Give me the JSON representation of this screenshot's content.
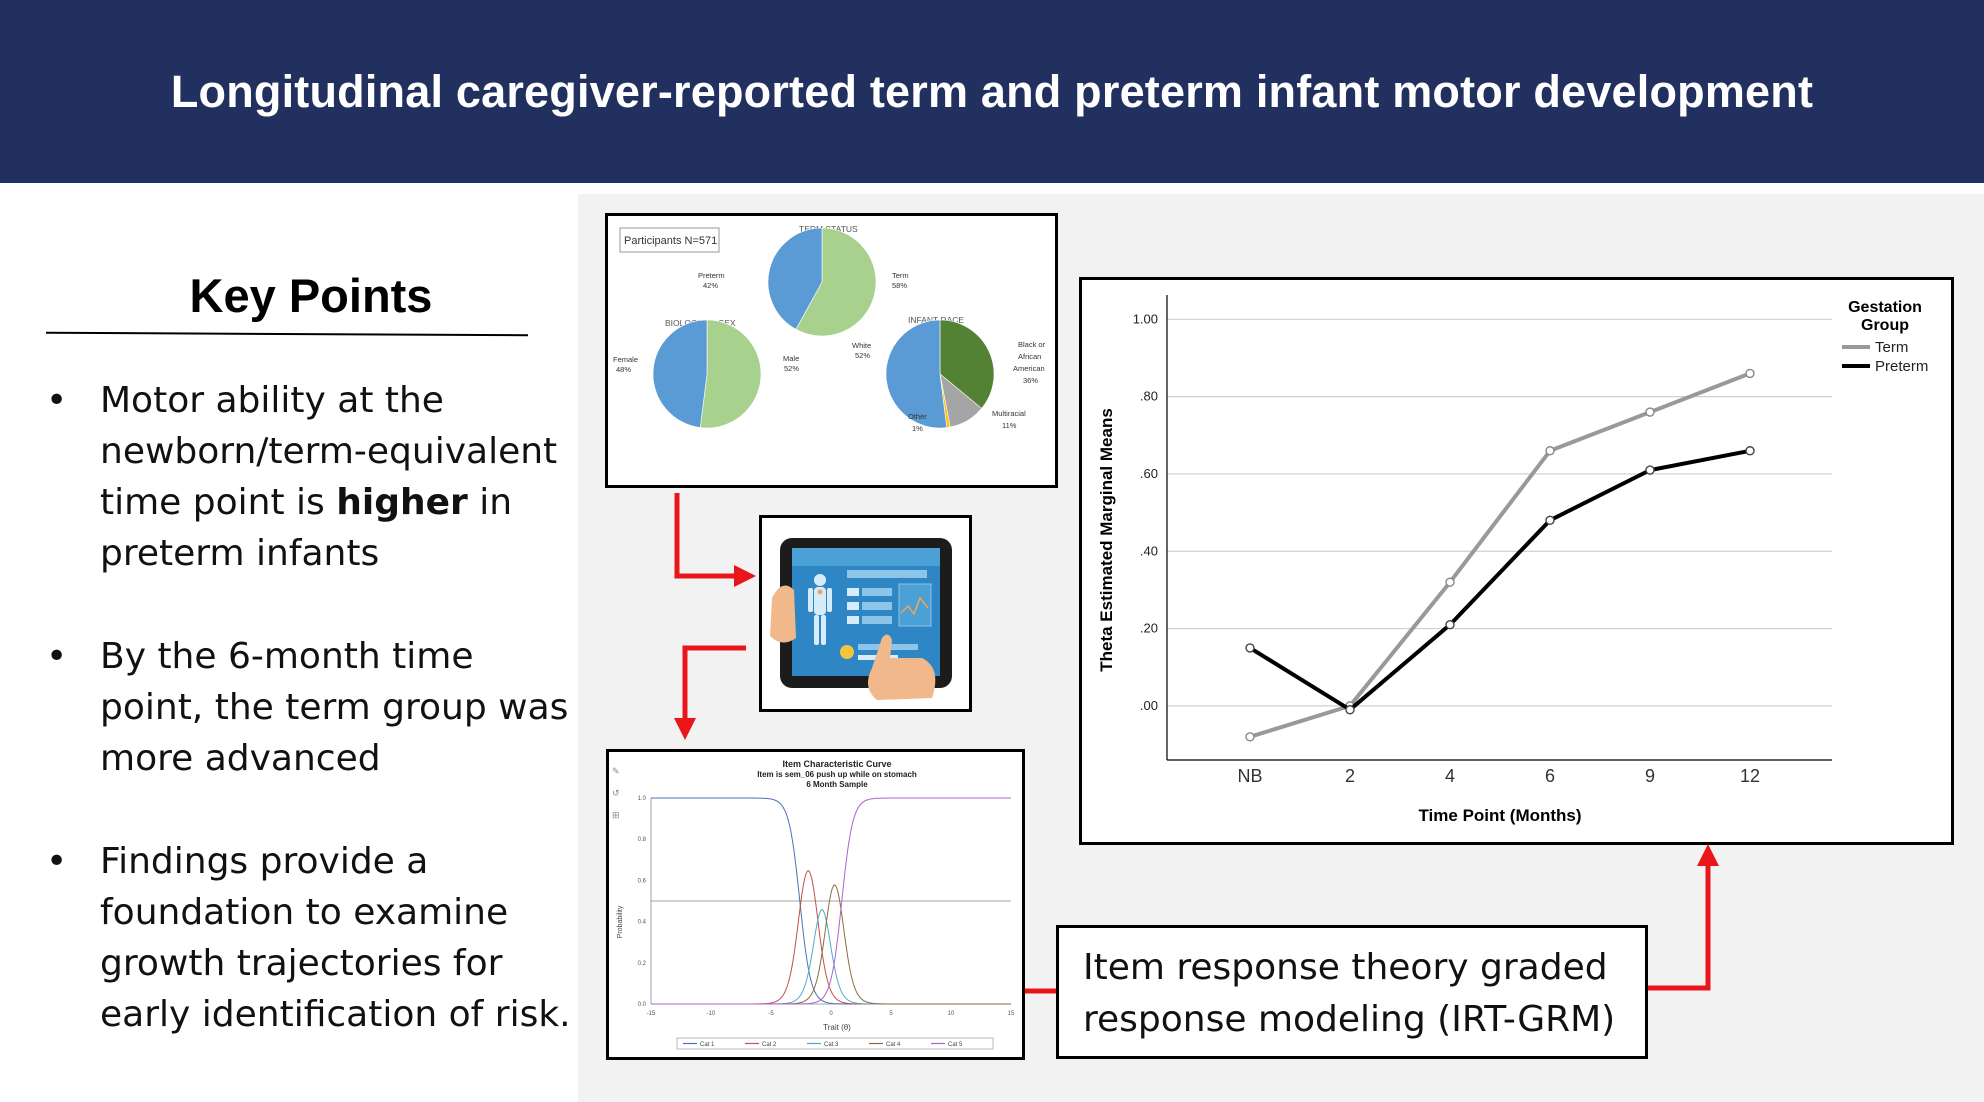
{
  "header": {
    "title": "Longitudinal caregiver-reported term and preterm infant motor development"
  },
  "key_points": {
    "title": "Key Points",
    "bullet_symbol": "•",
    "items": [
      {
        "line1": "Motor ability at the",
        "line2": "newborn/term-equivalent",
        "line3a": "time point is ",
        "bold": "higher",
        "line3b": " in",
        "line4": "preterm infants"
      },
      {
        "line1": "By the 6-month time",
        "line2": "point, the term group was",
        "line3": "more advanced"
      },
      {
        "line1": "Findings provide a",
        "line2": "foundation to examine",
        "line3": "growth trajectories for",
        "line4": "early identification of risk."
      }
    ]
  },
  "demographics": {
    "participants": "Participants N=571",
    "term_status": {
      "title": "TERM STATUS",
      "preterm_label": "Preterm",
      "preterm_pct": "42%",
      "preterm_value": 42,
      "term_label": "Term",
      "term_pct": "58%",
      "term_value": 58
    },
    "sex": {
      "title": "BIOLOGICAL SEX",
      "female_label": "Female",
      "female_pct": "48%",
      "female_value": 48,
      "male_label": "Male",
      "male_pct": "52%",
      "male_value": 52
    },
    "race": {
      "title": "INFANT RACE",
      "white_label": "White",
      "white_pct": "52%",
      "white_value": 52,
      "black_label1": "Black or",
      "black_label2": "African",
      "black_label3": "American",
      "black_pct": "36%",
      "black_value": 36,
      "multi_label": "Multiracial",
      "multi_pct": "11%",
      "multi_value": 11,
      "other_label": "Other",
      "other_pct": "1%",
      "other_value": 1
    },
    "colors": {
      "blue": "#5b9bd5",
      "green": "#a9d18e",
      "darkgreen": "#548235",
      "gray": "#a5a5a5",
      "yellow": "#ffc000"
    }
  },
  "icc": {
    "title": "Item Characteristic Curve",
    "subtitle": "Item is sem_06 push up while on stomach",
    "sample": "6 Month Sample",
    "ylabel": "Probability",
    "xlabel": "Trait (θ)",
    "yticks": [
      "1.0",
      "0.8",
      "0.6",
      "0.4",
      "0.2",
      "0.0"
    ],
    "xticks": [
      "-15",
      "-10",
      "-5",
      "0",
      "5",
      "10",
      "15"
    ],
    "legend": [
      "Cat 1",
      "Cat 2",
      "Cat 3",
      "Cat 4",
      "Cat 5"
    ],
    "colors": [
      "#4f6fb5",
      "#c0504d",
      "#4bacc6",
      "#8a6d3b",
      "#b05fd0"
    ]
  },
  "irt_box": {
    "line1": "Item response theory graded",
    "line2": "response modeling (IRT-GRM)"
  },
  "chart_data": {
    "type": "line",
    "title": "",
    "xlabel": "Time Point (Months)",
    "ylabel": "Theta Estimated Marginal Means",
    "categories": [
      "NB",
      "2",
      "4",
      "6",
      "9",
      "12"
    ],
    "ylim": [
      -0.14,
      1.05
    ],
    "yticks": [
      1.0,
      0.8,
      0.6,
      0.4,
      0.2,
      0.0
    ],
    "ytick_labels": [
      "1.00",
      ".80",
      ".60",
      ".40",
      ".20",
      ".00"
    ],
    "legend_title1": "Gestation",
    "legend_title2": "Group",
    "series": [
      {
        "name": "Term",
        "color": "#999999",
        "values": [
          -0.08,
          0.0,
          0.32,
          0.66,
          0.76,
          0.86
        ]
      },
      {
        "name": "Preterm",
        "color": "#000000",
        "values": [
          0.15,
          -0.01,
          0.21,
          0.48,
          0.61,
          0.66
        ]
      }
    ]
  },
  "arrows": {
    "color": "#e8151b"
  }
}
